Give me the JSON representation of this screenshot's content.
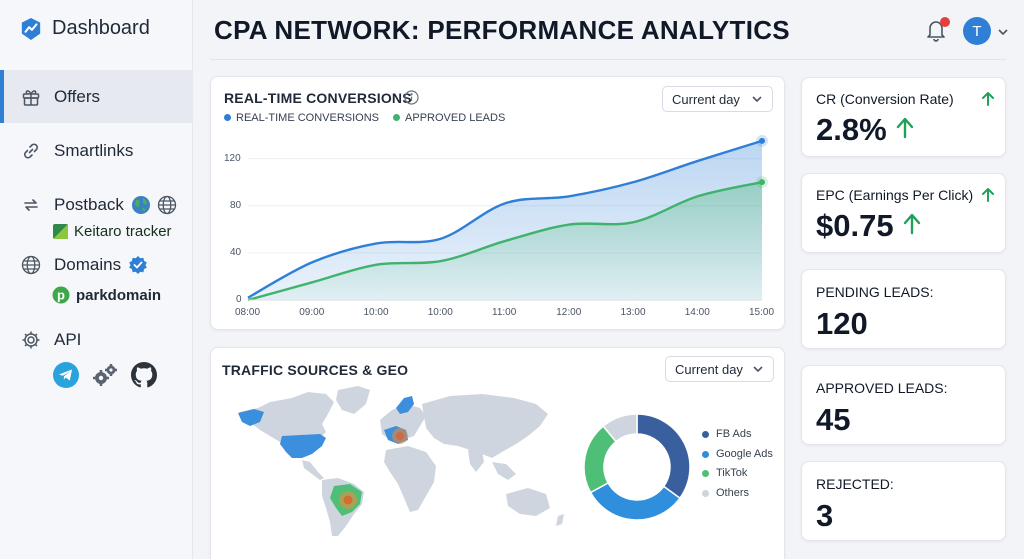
{
  "sidebar": {
    "brand": "Dashboard",
    "items": [
      {
        "label": "Offers"
      },
      {
        "label": "Smartlinks"
      },
      {
        "label": "Postback"
      },
      {
        "label": "Domains"
      },
      {
        "label": "API"
      }
    ],
    "postback_tracker": "Keitaro tracker",
    "domains_provider": "parkdomain"
  },
  "header": {
    "title": "CPA NETWORK: PERFORMANCE ANALYTICS",
    "avatar_initial": "T"
  },
  "conversions": {
    "title": "REAL-TIME CONVERSIONS",
    "period": "Current day",
    "legend": [
      "REAL-TIME CONVERSIONS",
      "APPROVED LEADS"
    ]
  },
  "traffic": {
    "title": "TRAFFIC SOURCES & GEO",
    "period": "Current day",
    "sources": [
      "FB Ads",
      "Google Ads",
      "TikTok",
      "Others"
    ]
  },
  "kpis": {
    "cr_label": "CR (Conversion Rate)",
    "cr_value": "2.8%",
    "epc_label": "EPC (Earnings Per Click)",
    "epc_value": "$0.75",
    "pending_label": "PENDING LEADS:",
    "pending_value": "120",
    "approved_label": "APPROVED LEADS:",
    "approved_value": "45",
    "rejected_label": "REJECTED:",
    "rejected_value": "3"
  },
  "colors": {
    "accent": "#2f7fd6",
    "series_conversions": "#2f7fd6",
    "series_approved": "#3fb36b",
    "up_arrow": "#22a05a",
    "pie": [
      "#3a5f9e",
      "#2f8fdc",
      "#4fbf77",
      "#cfd5de"
    ]
  },
  "chart_data": [
    {
      "type": "line",
      "title": "REAL-TIME CONVERSIONS",
      "x": [
        "08:00",
        "09:00",
        "10:00",
        "10:00",
        "11:00",
        "12:00",
        "13:00",
        "14:00",
        "15:00"
      ],
      "yticks": [
        0,
        40,
        80,
        120
      ],
      "ylim": [
        0,
        140
      ],
      "grid": true,
      "legend_position": "top-left",
      "series": [
        {
          "name": "REAL-TIME CONVERSIONS",
          "values": [
            2,
            32,
            48,
            52,
            82,
            88,
            100,
            118,
            135
          ]
        },
        {
          "name": "APPROVED LEADS",
          "values": [
            0,
            15,
            30,
            33,
            50,
            64,
            66,
            88,
            100
          ]
        }
      ]
    },
    {
      "type": "pie",
      "title": "TRAFFIC SOURCES & GEO",
      "categories": [
        "FB Ads",
        "Google Ads",
        "TikTok",
        "Others"
      ],
      "values": [
        35,
        32,
        22,
        11
      ],
      "legend_position": "right"
    }
  ]
}
